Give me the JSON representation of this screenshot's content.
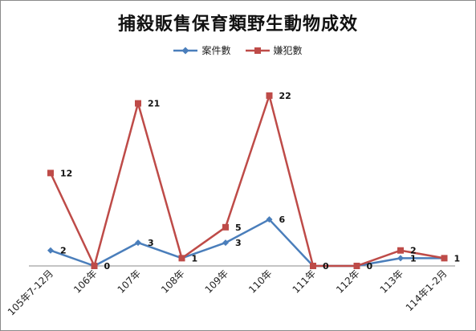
{
  "chart_data": {
    "type": "line",
    "title": "捕殺販售保育類野生動物成效",
    "categories": [
      "105年7-12月",
      "106年",
      "107年",
      "108年",
      "109年",
      "110年",
      "111年",
      "112年",
      "113年",
      "114年1-2月"
    ],
    "series": [
      {
        "name": "案件數",
        "values": [
          2,
          0,
          3,
          1,
          3,
          6,
          0,
          0,
          1,
          1
        ],
        "color": "#4a7ebb",
        "marker": "diamond"
      },
      {
        "name": "嫌犯數",
        "values": [
          12,
          0,
          21,
          1,
          5,
          22,
          0,
          0,
          2,
          1
        ],
        "color": "#be4b48",
        "marker": "square"
      }
    ],
    "data_labels": [
      {
        "series": 0,
        "index": 0,
        "text": "2"
      },
      {
        "series": 0,
        "index": 1,
        "text": "0"
      },
      {
        "series": 0,
        "index": 2,
        "text": "3"
      },
      {
        "series": 0,
        "index": 4,
        "text": "3"
      },
      {
        "series": 0,
        "index": 5,
        "text": "6"
      },
      {
        "series": 0,
        "index": 6,
        "text": "0"
      },
      {
        "series": 0,
        "index": 7,
        "text": "0"
      },
      {
        "series": 0,
        "index": 8,
        "text": "1"
      },
      {
        "series": 0,
        "index": 9,
        "text": "1"
      },
      {
        "series": 1,
        "index": 0,
        "text": "12"
      },
      {
        "series": 1,
        "index": 2,
        "text": "21"
      },
      {
        "series": 1,
        "index": 3,
        "text": "1"
      },
      {
        "series": 1,
        "index": 4,
        "text": "5"
      },
      {
        "series": 1,
        "index": 5,
        "text": "22"
      },
      {
        "series": 1,
        "index": 8,
        "text": "2"
      }
    ],
    "ylim": [
      0,
      22
    ],
    "xlabel": "",
    "ylabel": "",
    "grid": false,
    "legend_position": "top"
  }
}
